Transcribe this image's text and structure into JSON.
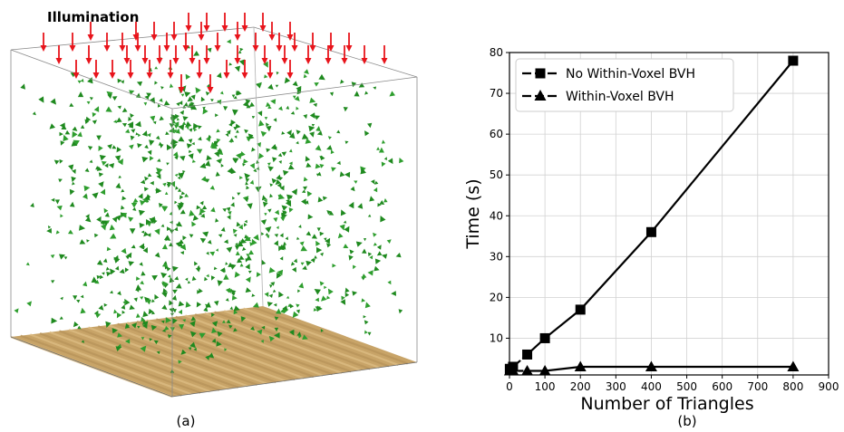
{
  "left_panel": {
    "illumination_label": "Illumination",
    "caption": "(a)",
    "arrow_color": "#e8141b",
    "leaf_color": "#1f8a1f",
    "ground_color": "#c8a468"
  },
  "right_panel": {
    "caption": "(b)"
  },
  "chart_data": {
    "type": "line",
    "title": "",
    "xlabel": "Number of Triangles",
    "ylabel": "Time (s)",
    "xlim": [
      0,
      900
    ],
    "ylim": [
      1,
      80
    ],
    "x_ticks": [
      "0",
      "100",
      "200",
      "300",
      "400",
      "500",
      "600",
      "700",
      "800",
      "900"
    ],
    "y_ticks": [
      "10",
      "20",
      "30",
      "40",
      "50",
      "60",
      "70",
      "80"
    ],
    "grid": true,
    "legend_position": "top-left",
    "series": [
      {
        "name": "No Within-Voxel BVH",
        "marker": "square",
        "line_style": "dashed-solid",
        "color": "#000000",
        "x": [
          1,
          10,
          50,
          100,
          200,
          400,
          800
        ],
        "y": [
          2.5,
          3,
          6,
          10,
          17,
          36,
          78
        ]
      },
      {
        "name": "Within-Voxel BVH",
        "marker": "triangle",
        "line_style": "dashed-solid",
        "color": "#000000",
        "x": [
          1,
          10,
          50,
          100,
          200,
          400,
          800
        ],
        "y": [
          2,
          2,
          2,
          2,
          3,
          3,
          3
        ]
      }
    ]
  }
}
